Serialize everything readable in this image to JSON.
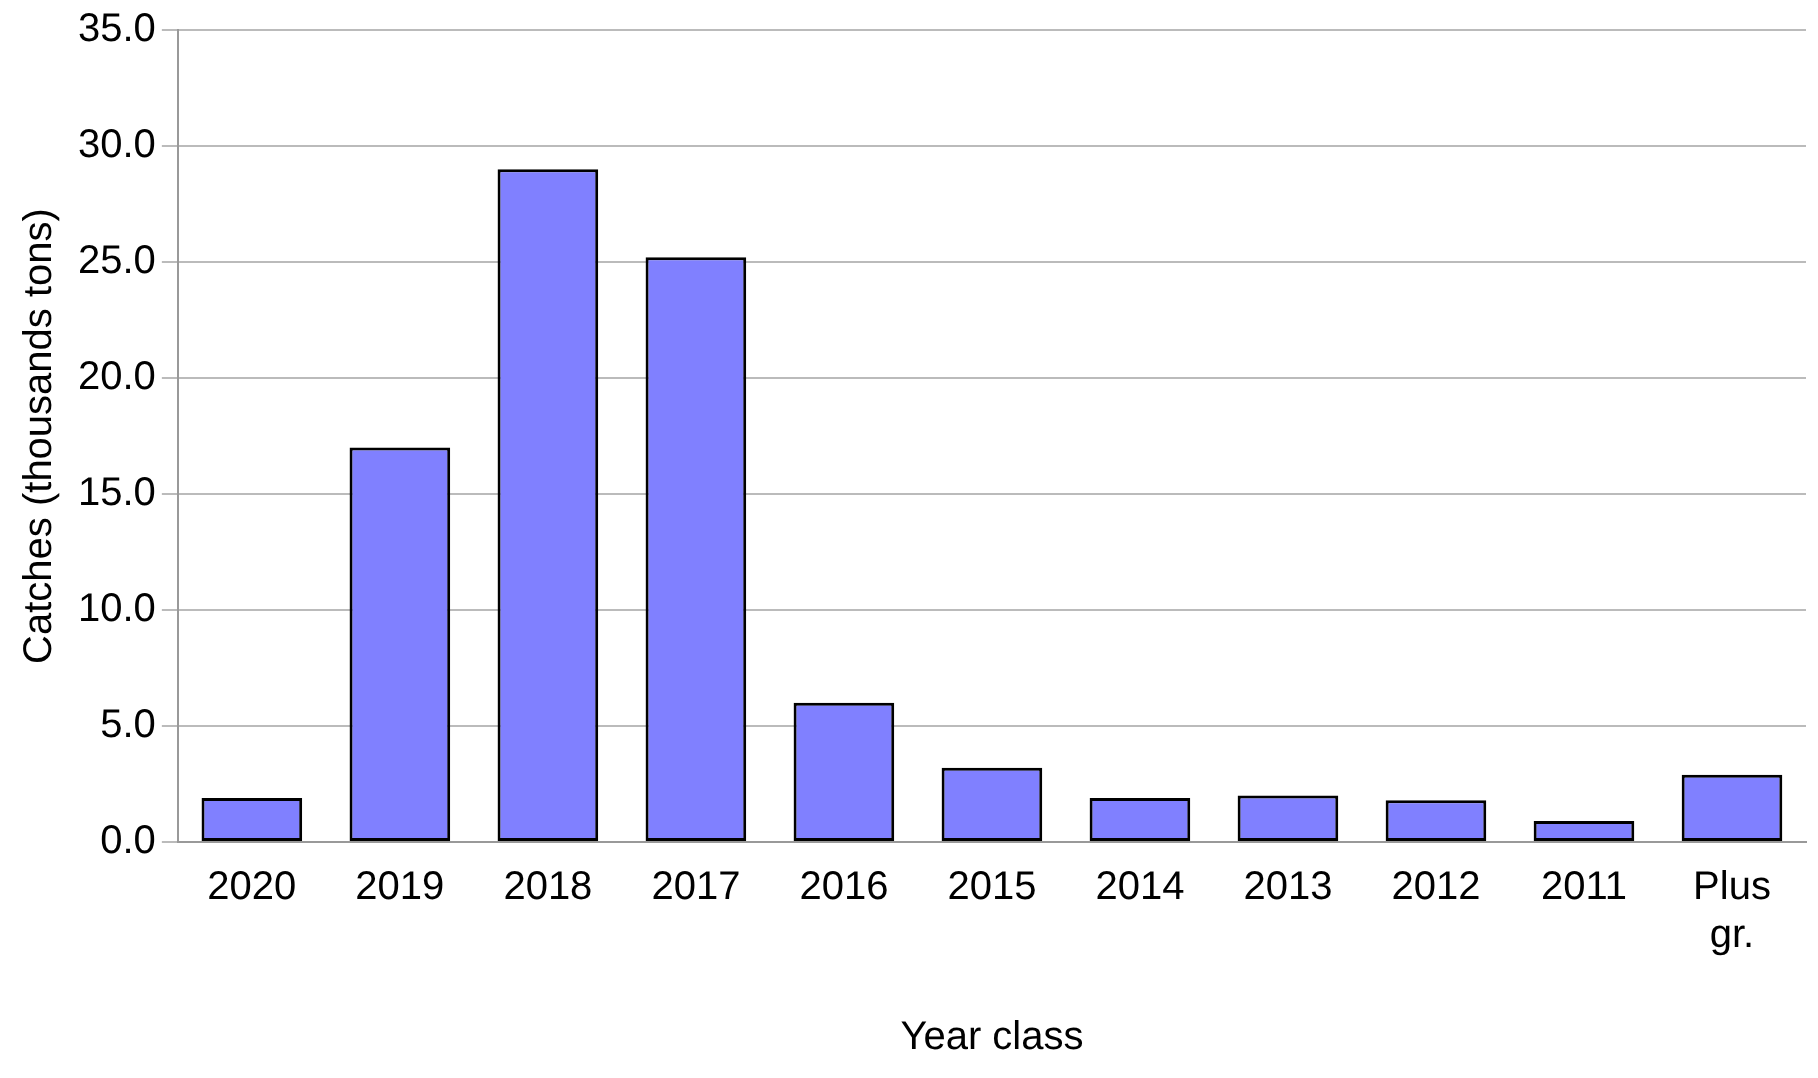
{
  "chart_data": {
    "type": "bar",
    "xlabel": "Year class",
    "ylabel": "Catches (thousands tons)",
    "categories": [
      "2020",
      "2019",
      "2018",
      "2017",
      "2016",
      "2015",
      "2014",
      "2013",
      "2012",
      "2011",
      "Plus gr."
    ],
    "values": [
      1.9,
      17.0,
      29.0,
      25.2,
      6.0,
      3.2,
      1.9,
      2.0,
      1.8,
      0.9,
      2.9
    ],
    "color": "#8080ff",
    "ylim": [
      0,
      35
    ],
    "yticks": [
      {
        "value": 0,
        "label": "0.0"
      },
      {
        "value": 5,
        "label": "5.0"
      },
      {
        "value": 10,
        "label": "10.0"
      },
      {
        "value": 15,
        "label": "15.0"
      },
      {
        "value": 20,
        "label": "20.0"
      },
      {
        "value": 25,
        "label": "25.0"
      },
      {
        "value": 30,
        "label": "30.0"
      },
      {
        "value": 35,
        "label": "35.0"
      }
    ],
    "grid": "y"
  }
}
